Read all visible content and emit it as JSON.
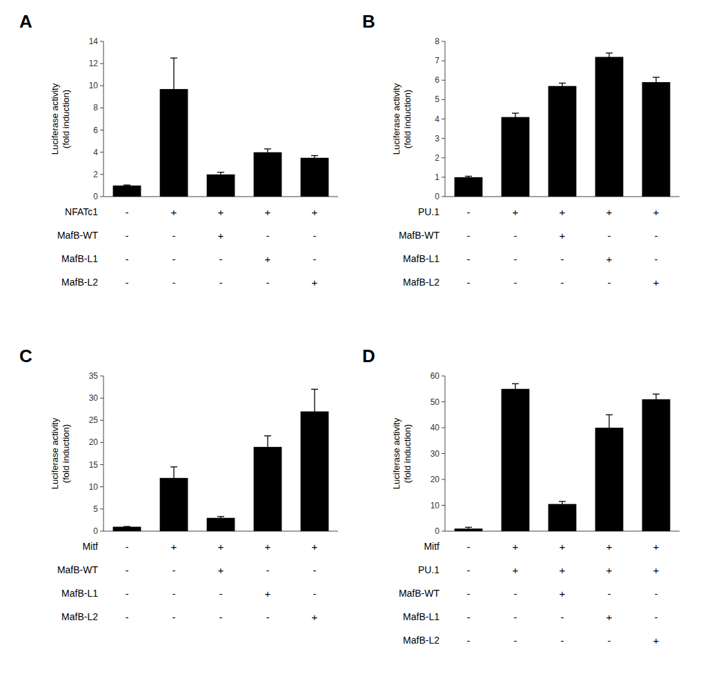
{
  "chart_data": [
    {
      "type": "bar",
      "title": "A",
      "ylabel": "Luciferase activity\n(fold induction)",
      "values": [
        1.0,
        9.7,
        2.0,
        4.0,
        3.5
      ],
      "errors": [
        0.05,
        2.8,
        0.2,
        0.3,
        0.2
      ],
      "color": "#000000",
      "ylim": [
        0,
        14
      ],
      "yticks": [
        0,
        2,
        4,
        6,
        8,
        10,
        12,
        14
      ],
      "grid": false,
      "tick_labels": "y",
      "row_labels": [
        "NFATc1",
        "MafB-WT",
        "MafB-L1",
        "MafB-L2"
      ],
      "signs": [
        [
          "-",
          "+",
          "+",
          "+",
          "+"
        ],
        [
          "-",
          "-",
          "+",
          "-",
          "-"
        ],
        [
          "-",
          "-",
          "-",
          "+",
          "-"
        ],
        [
          "-",
          "-",
          "-",
          "-",
          "+"
        ]
      ]
    },
    {
      "type": "bar",
      "title": "B",
      "ylabel": "Luciferase activity\n(fold induction)",
      "values": [
        1.0,
        4.1,
        5.7,
        7.2,
        5.9
      ],
      "errors": [
        0.05,
        0.2,
        0.15,
        0.2,
        0.25
      ],
      "color": "#000000",
      "ylim": [
        0,
        8
      ],
      "yticks": [
        0,
        1,
        2,
        3,
        4,
        5,
        6,
        7,
        8
      ],
      "grid": false,
      "tick_labels": "y",
      "row_labels": [
        "PU.1",
        "MafB-WT",
        "MafB-L1",
        "MafB-L2"
      ],
      "signs": [
        [
          "-",
          "+",
          "+",
          "+",
          "+"
        ],
        [
          "-",
          "-",
          "+",
          "-",
          "-"
        ],
        [
          "-",
          "-",
          "-",
          "+",
          "-"
        ],
        [
          "-",
          "-",
          "-",
          "-",
          "+"
        ]
      ]
    },
    {
      "type": "bar",
      "title": "C",
      "ylabel": "Luciferase activity\n(fold induction)",
      "values": [
        1.0,
        12.0,
        3.0,
        19.0,
        27.0
      ],
      "errors": [
        0.05,
        2.5,
        0.3,
        2.5,
        5.0
      ],
      "color": "#000000",
      "ylim": [
        0,
        35
      ],
      "yticks": [
        0,
        5,
        10,
        15,
        20,
        25,
        30,
        35
      ],
      "grid": false,
      "tick_labels": "y",
      "row_labels": [
        "Mitf",
        "MafB-WT",
        "MafB-L1",
        "MafB-L2"
      ],
      "signs": [
        [
          "-",
          "+",
          "+",
          "+",
          "+"
        ],
        [
          "-",
          "-",
          "+",
          "-",
          "-"
        ],
        [
          "-",
          "-",
          "-",
          "+",
          "-"
        ],
        [
          "-",
          "-",
          "-",
          "-",
          "+"
        ]
      ]
    },
    {
      "type": "bar",
      "title": "D",
      "ylabel": "Luciferase activity\n(fold induction)",
      "values": [
        1.0,
        55.0,
        10.5,
        40.0,
        51.0
      ],
      "errors": [
        0.5,
        2.0,
        1.0,
        5.0,
        2.0
      ],
      "color": "#000000",
      "ylim": [
        0,
        60
      ],
      "yticks": [
        0,
        10,
        20,
        30,
        40,
        50,
        60
      ],
      "grid": false,
      "tick_labels": "y",
      "row_labels": [
        "Mitf",
        "PU.1",
        "MafB-WT",
        "MafB-L1",
        "MafB-L2"
      ],
      "signs": [
        [
          "-",
          "+",
          "+",
          "+",
          "+"
        ],
        [
          "-",
          "+",
          "+",
          "+",
          "+"
        ],
        [
          "-",
          "-",
          "+",
          "-",
          "-"
        ],
        [
          "-",
          "-",
          "-",
          "+",
          "-"
        ],
        [
          "-",
          "-",
          "-",
          "-",
          "+"
        ]
      ]
    }
  ]
}
